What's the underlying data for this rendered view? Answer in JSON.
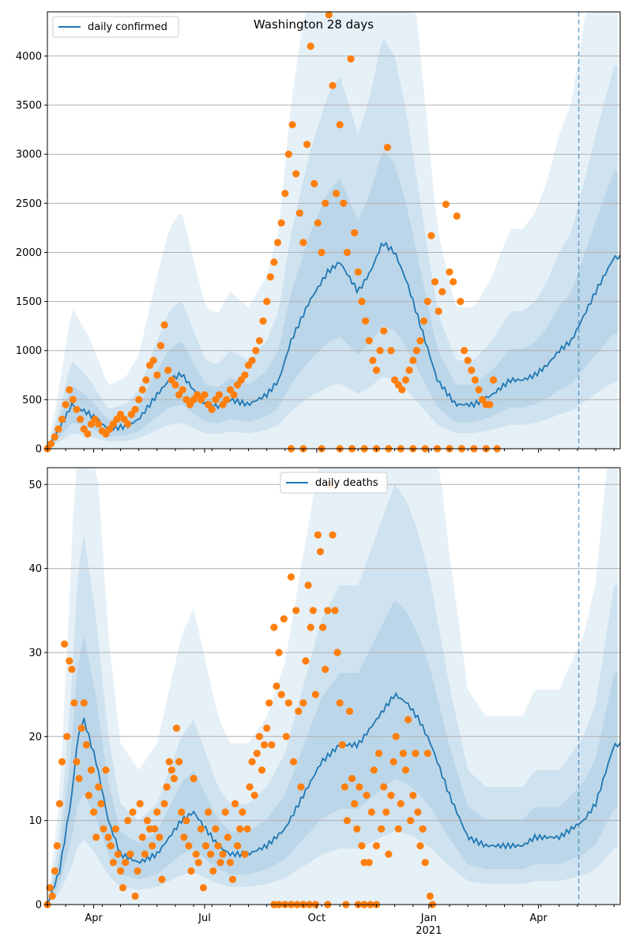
{
  "chart_data": [
    {
      "type": "line",
      "title": "Washington 28 days",
      "legend": {
        "entries": [
          "daily confirmed"
        ],
        "placement": "top-left"
      },
      "x_ticks": [
        "Apr",
        "Jul",
        "Oct",
        "Jan",
        "Apr"
      ],
      "x_year_label": "2021",
      "y_ticks": [
        0,
        500,
        1000,
        1500,
        2000,
        2500,
        3000,
        3500,
        4000
      ],
      "ylim": [
        0,
        4450
      ],
      "grid": "horizontal",
      "forecast_marker_day": 436,
      "colors": {
        "line": "#1f77b4",
        "points": "#ff7f0e",
        "band": "#1f77b4"
      },
      "series": [
        {
          "name": "daily confirmed",
          "x_days": [
            0,
            10,
            20,
            35,
            50,
            65,
            75,
            90,
            100,
            110,
            120,
            130,
            140,
            150,
            165,
            180,
            190,
            200,
            215,
            230,
            240,
            255,
            265,
            275,
            285,
            295,
            310,
            320,
            335,
            350,
            365,
            380,
            390,
            400,
            410,
            420,
            430,
            440,
            450,
            465
          ],
          "values": [
            0,
            200,
            450,
            350,
            200,
            230,
            300,
            550,
            700,
            760,
            600,
            450,
            430,
            500,
            450,
            550,
            700,
            1100,
            1500,
            1800,
            1900,
            1600,
            1800,
            2100,
            2000,
            1700,
            1100,
            700,
            450,
            450,
            550,
            700,
            700,
            750,
            850,
            1000,
            1100,
            1350,
            1600,
            1950
          ]
        }
      ],
      "points": [
        [
          0,
          0
        ],
        [
          3,
          50
        ],
        [
          6,
          120
        ],
        [
          9,
          200
        ],
        [
          12,
          300
        ],
        [
          15,
          450
        ],
        [
          18,
          600
        ],
        [
          21,
          500
        ],
        [
          24,
          400
        ],
        [
          27,
          300
        ],
        [
          30,
          200
        ],
        [
          33,
          150
        ],
        [
          36,
          250
        ],
        [
          39,
          300
        ],
        [
          42,
          250
        ],
        [
          45,
          180
        ],
        [
          48,
          150
        ],
        [
          51,
          200
        ],
        [
          54,
          250
        ],
        [
          57,
          300
        ],
        [
          60,
          350
        ],
        [
          63,
          300
        ],
        [
          66,
          250
        ],
        [
          69,
          350
        ],
        [
          72,
          400
        ],
        [
          75,
          500
        ],
        [
          78,
          600
        ],
        [
          81,
          700
        ],
        [
          84,
          850
        ],
        [
          87,
          900
        ],
        [
          90,
          750
        ],
        [
          93,
          1050
        ],
        [
          96,
          1260
        ],
        [
          99,
          800
        ],
        [
          102,
          700
        ],
        [
          105,
          650
        ],
        [
          108,
          550
        ],
        [
          111,
          600
        ],
        [
          114,
          500
        ],
        [
          117,
          450
        ],
        [
          120,
          500
        ],
        [
          123,
          550
        ],
        [
          126,
          500
        ],
        [
          129,
          550
        ],
        [
          132,
          450
        ],
        [
          135,
          400
        ],
        [
          138,
          500
        ],
        [
          141,
          550
        ],
        [
          144,
          450
        ],
        [
          147,
          500
        ],
        [
          150,
          600
        ],
        [
          153,
          550
        ],
        [
          156,
          650
        ],
        [
          159,
          700
        ],
        [
          162,
          750
        ],
        [
          165,
          850
        ],
        [
          168,
          900
        ],
        [
          171,
          1000
        ],
        [
          174,
          1100
        ],
        [
          177,
          1300
        ],
        [
          180,
          1500
        ],
        [
          183,
          1750
        ],
        [
          186,
          1900
        ],
        [
          189,
          2100
        ],
        [
          192,
          2300
        ],
        [
          195,
          2600
        ],
        [
          198,
          3000
        ],
        [
          201,
          3300
        ],
        [
          204,
          2800
        ],
        [
          207,
          2400
        ],
        [
          210,
          2100
        ],
        [
          213,
          3100
        ],
        [
          216,
          4100
        ],
        [
          219,
          2700
        ],
        [
          222,
          2300
        ],
        [
          225,
          2000
        ],
        [
          228,
          2500
        ],
        [
          231,
          4420
        ],
        [
          234,
          3700
        ],
        [
          237,
          2600
        ],
        [
          240,
          3300
        ],
        [
          243,
          2500
        ],
        [
          246,
          2000
        ],
        [
          249,
          3970
        ],
        [
          252,
          2200
        ],
        [
          255,
          1800
        ],
        [
          258,
          1500
        ],
        [
          261,
          1300
        ],
        [
          264,
          1100
        ],
        [
          267,
          900
        ],
        [
          270,
          800
        ],
        [
          273,
          1000
        ],
        [
          276,
          1200
        ],
        [
          279,
          3070
        ],
        [
          282,
          1000
        ],
        [
          285,
          700
        ],
        [
          288,
          650
        ],
        [
          291,
          600
        ],
        [
          294,
          700
        ],
        [
          297,
          800
        ],
        [
          300,
          900
        ],
        [
          303,
          1000
        ],
        [
          306,
          1100
        ],
        [
          309,
          1300
        ],
        [
          312,
          1500
        ],
        [
          315,
          2170
        ],
        [
          318,
          1700
        ],
        [
          321,
          1400
        ],
        [
          324,
          1600
        ],
        [
          327,
          2490
        ],
        [
          330,
          1800
        ],
        [
          333,
          1700
        ],
        [
          336,
          2370
        ],
        [
          339,
          1500
        ],
        [
          342,
          1000
        ],
        [
          345,
          900
        ],
        [
          348,
          800
        ],
        [
          351,
          700
        ],
        [
          354,
          600
        ],
        [
          357,
          500
        ],
        [
          360,
          450
        ],
        [
          363,
          450
        ],
        [
          366,
          700
        ],
        [
          369,
          0
        ],
        [
          200,
          0
        ],
        [
          210,
          0
        ],
        [
          225,
          0
        ],
        [
          240,
          0
        ],
        [
          250,
          0
        ],
        [
          260,
          0
        ],
        [
          270,
          0
        ],
        [
          280,
          0
        ],
        [
          290,
          0
        ],
        [
          300,
          0
        ],
        [
          310,
          0
        ],
        [
          320,
          0
        ],
        [
          330,
          0
        ],
        [
          340,
          0
        ],
        [
          350,
          0
        ],
        [
          360,
          0
        ]
      ]
    },
    {
      "type": "line",
      "legend": {
        "entries": [
          "daily deaths"
        ],
        "placement": "top-center"
      },
      "x_ticks": [
        "Apr",
        "Jul",
        "Oct",
        "Jan",
        "Apr"
      ],
      "x_year_label": "2021",
      "y_ticks": [
        0,
        10,
        20,
        30,
        40,
        50
      ],
      "ylim": [
        0,
        52
      ],
      "grid": "horizontal",
      "forecast_marker_day": 436,
      "colors": {
        "line": "#1f77b4",
        "points": "#ff7f0e",
        "band": "#1f77b4"
      },
      "series": [
        {
          "name": "daily deaths",
          "x_days": [
            0,
            10,
            20,
            25,
            30,
            40,
            50,
            60,
            75,
            90,
            100,
            110,
            120,
            130,
            140,
            150,
            165,
            180,
            195,
            210,
            225,
            240,
            255,
            270,
            285,
            295,
            305,
            315,
            330,
            345,
            360,
            380,
            390,
            400,
            410,
            420,
            430,
            440,
            450,
            465
          ],
          "values": [
            0,
            4,
            13,
            20,
            22,
            17,
            10,
            6,
            5,
            6,
            8,
            10,
            11,
            9,
            7,
            6,
            6,
            7,
            9,
            13,
            17,
            19,
            19,
            22,
            25,
            24,
            22,
            19,
            13,
            8,
            7,
            7,
            7,
            8,
            8,
            8,
            9,
            10,
            12,
            19
          ]
        }
      ],
      "points": [
        [
          0,
          0
        ],
        [
          2,
          2
        ],
        [
          4,
          1
        ],
        [
          6,
          4
        ],
        [
          8,
          7
        ],
        [
          10,
          12
        ],
        [
          12,
          17
        ],
        [
          14,
          31
        ],
        [
          16,
          20
        ],
        [
          18,
          29
        ],
        [
          20,
          28
        ],
        [
          22,
          24
        ],
        [
          24,
          17
        ],
        [
          26,
          15
        ],
        [
          28,
          21
        ],
        [
          30,
          24
        ],
        [
          32,
          19
        ],
        [
          34,
          13
        ],
        [
          36,
          16
        ],
        [
          38,
          11
        ],
        [
          40,
          8
        ],
        [
          42,
          14
        ],
        [
          44,
          12
        ],
        [
          46,
          9
        ],
        [
          48,
          16
        ],
        [
          50,
          8
        ],
        [
          52,
          7
        ],
        [
          54,
          5
        ],
        [
          56,
          9
        ],
        [
          58,
          6
        ],
        [
          60,
          4
        ],
        [
          62,
          2
        ],
        [
          64,
          5
        ],
        [
          66,
          10
        ],
        [
          68,
          6
        ],
        [
          70,
          11
        ],
        [
          72,
          1
        ],
        [
          74,
          4
        ],
        [
          76,
          12
        ],
        [
          78,
          8
        ],
        [
          80,
          6
        ],
        [
          82,
          10
        ],
        [
          84,
          9
        ],
        [
          86,
          7
        ],
        [
          88,
          9
        ],
        [
          90,
          11
        ],
        [
          92,
          8
        ],
        [
          94,
          3
        ],
        [
          96,
          12
        ],
        [
          98,
          14
        ],
        [
          100,
          17
        ],
        [
          102,
          16
        ],
        [
          104,
          15
        ],
        [
          106,
          21
        ],
        [
          108,
          17
        ],
        [
          110,
          11
        ],
        [
          112,
          8
        ],
        [
          114,
          10
        ],
        [
          116,
          7
        ],
        [
          118,
          4
        ],
        [
          120,
          15
        ],
        [
          122,
          6
        ],
        [
          124,
          5
        ],
        [
          126,
          9
        ],
        [
          128,
          2
        ],
        [
          130,
          7
        ],
        [
          132,
          11
        ],
        [
          134,
          6
        ],
        [
          136,
          4
        ],
        [
          138,
          9
        ],
        [
          140,
          7
        ],
        [
          142,
          5
        ],
        [
          144,
          6
        ],
        [
          146,
          11
        ],
        [
          148,
          8
        ],
        [
          150,
          5
        ],
        [
          152,
          3
        ],
        [
          154,
          12
        ],
        [
          156,
          7
        ],
        [
          158,
          9
        ],
        [
          160,
          11
        ],
        [
          162,
          6
        ],
        [
          164,
          9
        ],
        [
          166,
          14
        ],
        [
          168,
          17
        ],
        [
          170,
          13
        ],
        [
          172,
          18
        ],
        [
          174,
          20
        ],
        [
          176,
          16
        ],
        [
          178,
          19
        ],
        [
          180,
          21
        ],
        [
          182,
          24
        ],
        [
          184,
          19
        ],
        [
          186,
          33
        ],
        [
          188,
          26
        ],
        [
          190,
          30
        ],
        [
          192,
          25
        ],
        [
          194,
          34
        ],
        [
          196,
          20
        ],
        [
          198,
          24
        ],
        [
          200,
          39
        ],
        [
          202,
          17
        ],
        [
          204,
          35
        ],
        [
          206,
          23
        ],
        [
          208,
          14
        ],
        [
          210,
          24
        ],
        [
          212,
          29
        ],
        [
          214,
          38
        ],
        [
          216,
          33
        ],
        [
          218,
          35
        ],
        [
          220,
          25
        ],
        [
          222,
          44
        ],
        [
          224,
          42
        ],
        [
          226,
          33
        ],
        [
          228,
          28
        ],
        [
          230,
          35
        ],
        [
          232,
          50
        ],
        [
          234,
          44
        ],
        [
          236,
          35
        ],
        [
          238,
          30
        ],
        [
          240,
          24
        ],
        [
          242,
          19
        ],
        [
          244,
          14
        ],
        [
          246,
          10
        ],
        [
          248,
          23
        ],
        [
          250,
          15
        ],
        [
          252,
          12
        ],
        [
          254,
          9
        ],
        [
          256,
          14
        ],
        [
          258,
          7
        ],
        [
          260,
          5
        ],
        [
          262,
          13
        ],
        [
          264,
          5
        ],
        [
          266,
          11
        ],
        [
          268,
          16
        ],
        [
          270,
          7
        ],
        [
          272,
          18
        ],
        [
          274,
          9
        ],
        [
          276,
          14
        ],
        [
          278,
          11
        ],
        [
          280,
          6
        ],
        [
          282,
          13
        ],
        [
          284,
          17
        ],
        [
          286,
          20
        ],
        [
          288,
          9
        ],
        [
          290,
          12
        ],
        [
          292,
          18
        ],
        [
          294,
          16
        ],
        [
          296,
          22
        ],
        [
          298,
          10
        ],
        [
          300,
          13
        ],
        [
          302,
          18
        ],
        [
          304,
          11
        ],
        [
          306,
          7
        ],
        [
          308,
          9
        ],
        [
          310,
          5
        ],
        [
          312,
          18
        ],
        [
          314,
          1
        ],
        [
          316,
          0
        ],
        [
          186,
          0
        ],
        [
          190,
          0
        ],
        [
          195,
          0
        ],
        [
          200,
          0
        ],
        [
          205,
          0
        ],
        [
          210,
          0
        ],
        [
          215,
          0
        ],
        [
          220,
          0
        ],
        [
          230,
          0
        ],
        [
          245,
          0
        ],
        [
          255,
          0
        ],
        [
          260,
          0
        ],
        [
          265,
          0
        ],
        [
          270,
          0
        ]
      ]
    }
  ]
}
